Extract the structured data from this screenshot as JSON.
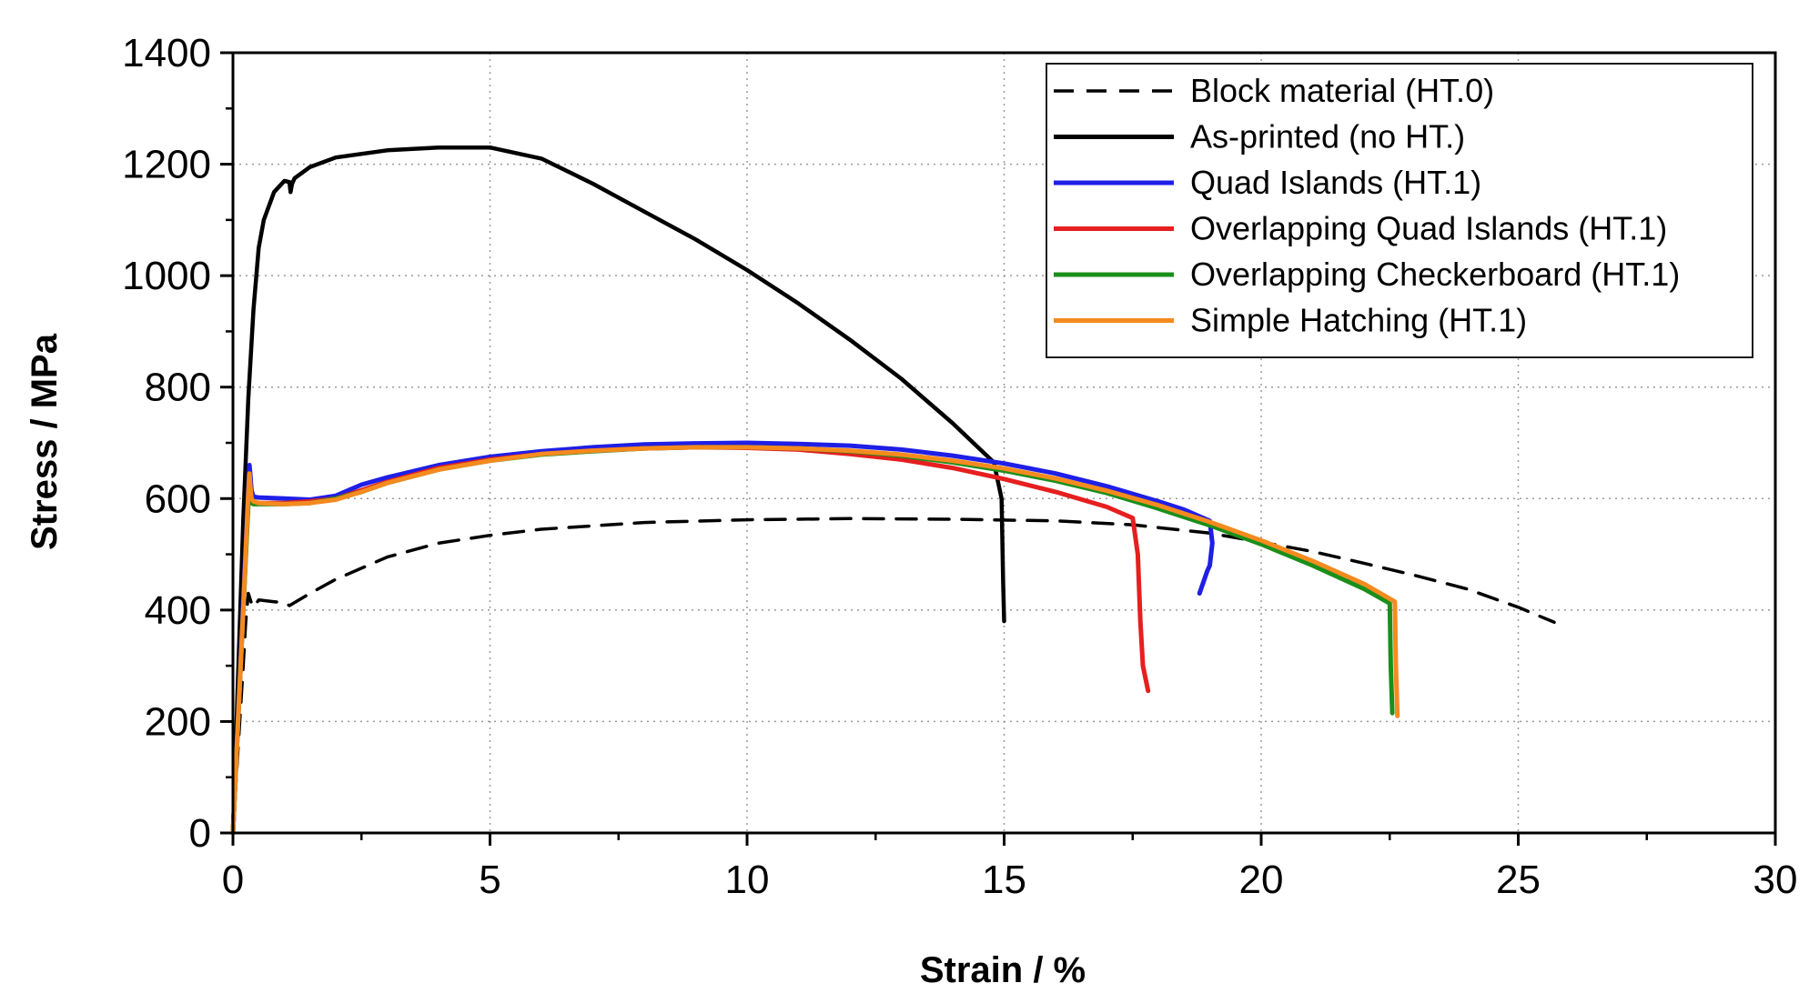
{
  "chart_data": {
    "type": "line",
    "title": "",
    "xlabel": "Strain / %",
    "ylabel": "Stress / MPa",
    "xlim": [
      0,
      30
    ],
    "ylim": [
      0,
      1400
    ],
    "xticks": [
      0,
      5,
      10,
      15,
      20,
      25,
      30
    ],
    "yticks": [
      0,
      200,
      400,
      600,
      800,
      1000,
      1200,
      1400
    ],
    "grid": true,
    "legend_position": "top-right",
    "series": [
      {
        "name": "Block material (HT.0)",
        "color": "#000000",
        "dash": "dashed",
        "x": [
          0,
          0.1,
          0.2,
          0.25,
          0.3,
          0.35,
          0.4,
          0.5,
          0.8,
          1.0,
          1.1,
          1.5,
          2.0,
          3.0,
          4.0,
          5.0,
          6.0,
          8.0,
          10.0,
          12.0,
          14.0,
          16.0,
          17.5,
          18.0,
          19.0,
          20.0,
          21.0,
          22.0,
          23.0,
          24.0,
          25.0,
          25.7
        ],
        "y": [
          0,
          150,
          300,
          380,
          430,
          415,
          405,
          418,
          415,
          413,
          408,
          430,
          455,
          495,
          520,
          534,
          545,
          557,
          562,
          564,
          563,
          560,
          553,
          548,
          538,
          522,
          505,
          484,
          462,
          438,
          405,
          378
        ]
      },
      {
        "name": "As-printed (no HT.)",
        "color": "#000000",
        "dash": "solid",
        "x": [
          0,
          0.1,
          0.2,
          0.3,
          0.4,
          0.5,
          0.6,
          0.8,
          1.0,
          1.1,
          1.12,
          1.15,
          1.2,
          1.5,
          2.0,
          3.0,
          4.0,
          5.0,
          6.0,
          7.0,
          8.0,
          9.0,
          10.0,
          11.0,
          12.0,
          13.0,
          14.0,
          14.8,
          14.95,
          14.98,
          15.0
        ],
        "y": [
          0,
          280,
          560,
          780,
          940,
          1050,
          1100,
          1150,
          1170,
          1168,
          1150,
          1165,
          1175,
          1195,
          1212,
          1225,
          1230,
          1230,
          1210,
          1165,
          1115,
          1065,
          1010,
          950,
          885,
          815,
          735,
          665,
          600,
          450,
          380
        ]
      },
      {
        "name": "Quad Islands (HT.1)",
        "color": "#1f1fe6",
        "dash": "solid",
        "x": [
          0,
          0.1,
          0.2,
          0.3,
          0.32,
          0.34,
          0.36,
          0.4,
          0.5,
          1.0,
          1.5,
          2.0,
          2.5,
          3.0,
          4.0,
          5.0,
          6.0,
          7.0,
          8.0,
          9.0,
          10.0,
          11.0,
          12.0,
          13.0,
          14.0,
          15.0,
          16.0,
          17.0,
          18.0,
          18.5,
          19.0,
          19.05,
          19.0,
          18.95,
          18.8
        ],
        "y": [
          0,
          210,
          420,
          620,
          660,
          640,
          615,
          603,
          602,
          600,
          598,
          605,
          625,
          638,
          660,
          675,
          685,
          692,
          697,
          699,
          700,
          698,
          695,
          688,
          677,
          663,
          645,
          622,
          595,
          580,
          560,
          520,
          480,
          470,
          430
        ]
      },
      {
        "name": "Overlapping Quad Islands (HT.1)",
        "color": "#e61f1f",
        "dash": "solid",
        "x": [
          0,
          0.1,
          0.2,
          0.3,
          0.32,
          0.34,
          0.36,
          0.4,
          0.5,
          1.0,
          1.5,
          2.0,
          2.5,
          3.0,
          4.0,
          5.0,
          6.0,
          7.0,
          8.0,
          9.0,
          10.0,
          11.0,
          12.0,
          13.0,
          14.0,
          15.0,
          16.0,
          17.0,
          17.5,
          17.6,
          17.65,
          17.7,
          17.8
        ],
        "y": [
          0,
          200,
          400,
          600,
          630,
          615,
          600,
          593,
          592,
          592,
          595,
          600,
          615,
          630,
          655,
          670,
          680,
          686,
          690,
          692,
          691,
          688,
          680,
          670,
          655,
          635,
          612,
          585,
          565,
          500,
          380,
          300,
          255
        ]
      },
      {
        "name": "Overlapping Checkerboard (HT.1)",
        "color": "#1a8f1a",
        "dash": "solid",
        "x": [
          0,
          0.1,
          0.2,
          0.3,
          0.32,
          0.34,
          0.36,
          0.4,
          0.5,
          1.0,
          1.5,
          2.0,
          2.5,
          3.0,
          4.0,
          5.0,
          6.0,
          7.0,
          8.0,
          9.0,
          10.0,
          11.0,
          12.0,
          13.0,
          14.0,
          15.0,
          16.0,
          17.0,
          18.0,
          19.0,
          20.0,
          21.0,
          22.0,
          22.5,
          22.52,
          22.55
        ],
        "y": [
          0,
          200,
          400,
          590,
          620,
          605,
          592,
          590,
          590,
          590,
          592,
          600,
          612,
          628,
          652,
          668,
          679,
          685,
          690,
          692,
          692,
          690,
          685,
          677,
          665,
          650,
          632,
          610,
          582,
          552,
          518,
          480,
          438,
          412,
          300,
          215
        ]
      },
      {
        "name": "Simple Hatching (HT.1)",
        "color": "#f58a1f",
        "dash": "solid",
        "x": [
          0,
          0.1,
          0.2,
          0.3,
          0.32,
          0.34,
          0.36,
          0.4,
          0.5,
          1.0,
          1.5,
          2.0,
          2.5,
          3.0,
          4.0,
          5.0,
          6.0,
          7.0,
          8.0,
          9.0,
          10.0,
          11.0,
          12.0,
          13.0,
          14.0,
          15.0,
          16.0,
          17.0,
          18.0,
          19.0,
          20.0,
          21.0,
          22.0,
          22.6,
          22.62,
          22.65
        ],
        "y": [
          0,
          200,
          400,
          610,
          645,
          620,
          600,
          595,
          592,
          590,
          592,
          598,
          612,
          628,
          652,
          668,
          680,
          686,
          690,
          692,
          692,
          690,
          686,
          679,
          668,
          654,
          636,
          614,
          588,
          558,
          525,
          488,
          447,
          415,
          300,
          210
        ]
      }
    ]
  }
}
